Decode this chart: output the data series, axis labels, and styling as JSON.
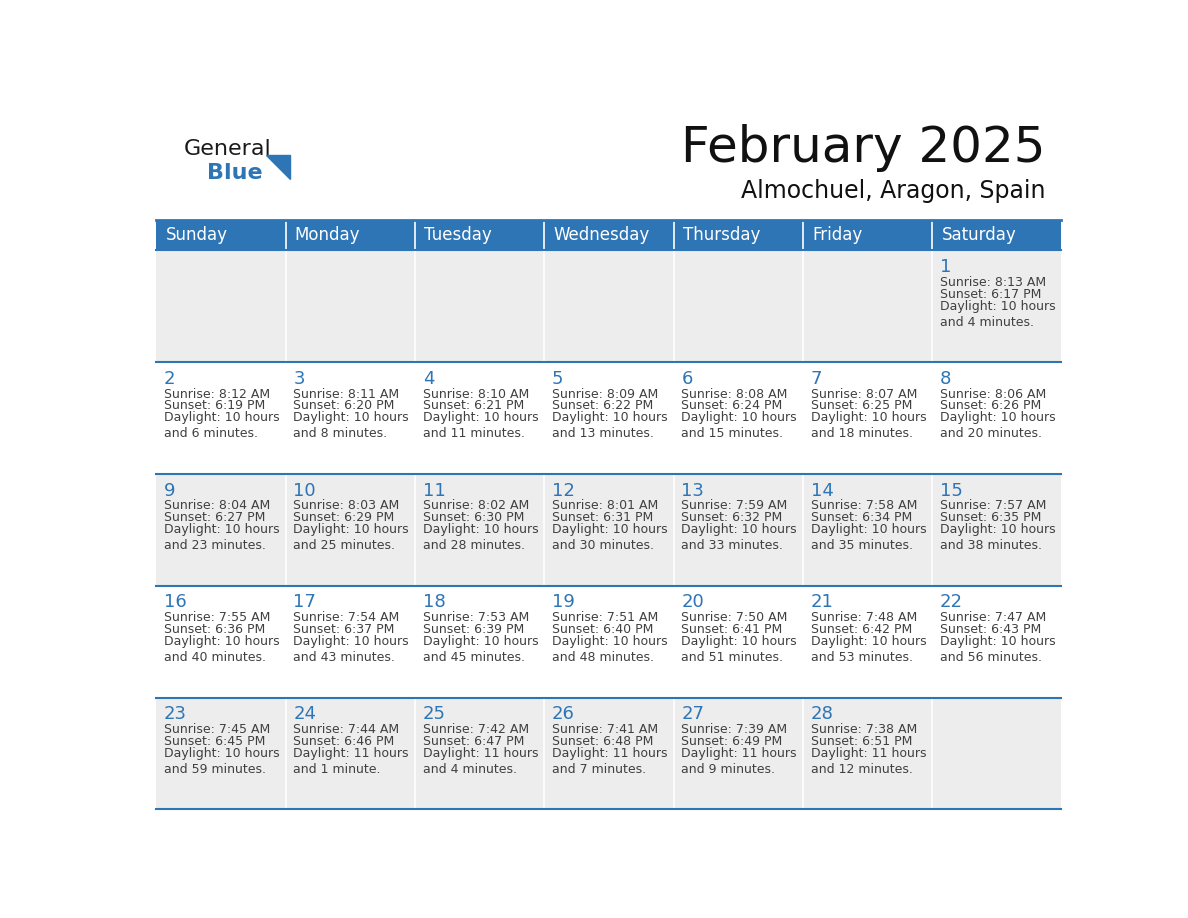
{
  "title": "February 2025",
  "subtitle": "Almochuel, Aragon, Spain",
  "header_bg": "#2E75B6",
  "header_text": "#FFFFFF",
  "cell_bg_gray": "#EDEDED",
  "cell_bg_white": "#FFFFFF",
  "day_number_color": "#2E75B6",
  "text_color": "#404040",
  "border_color": "#2E75B6",
  "days_of_week": [
    "Sunday",
    "Monday",
    "Tuesday",
    "Wednesday",
    "Thursday",
    "Friday",
    "Saturday"
  ],
  "calendar_data": [
    [
      null,
      null,
      null,
      null,
      null,
      null,
      {
        "day": 1,
        "sunrise": "8:13 AM",
        "sunset": "6:17 PM",
        "daylight": "10 hours\nand 4 minutes."
      }
    ],
    [
      {
        "day": 2,
        "sunrise": "8:12 AM",
        "sunset": "6:19 PM",
        "daylight": "10 hours\nand 6 minutes."
      },
      {
        "day": 3,
        "sunrise": "8:11 AM",
        "sunset": "6:20 PM",
        "daylight": "10 hours\nand 8 minutes."
      },
      {
        "day": 4,
        "sunrise": "8:10 AM",
        "sunset": "6:21 PM",
        "daylight": "10 hours\nand 11 minutes."
      },
      {
        "day": 5,
        "sunrise": "8:09 AM",
        "sunset": "6:22 PM",
        "daylight": "10 hours\nand 13 minutes."
      },
      {
        "day": 6,
        "sunrise": "8:08 AM",
        "sunset": "6:24 PM",
        "daylight": "10 hours\nand 15 minutes."
      },
      {
        "day": 7,
        "sunrise": "8:07 AM",
        "sunset": "6:25 PM",
        "daylight": "10 hours\nand 18 minutes."
      },
      {
        "day": 8,
        "sunrise": "8:06 AM",
        "sunset": "6:26 PM",
        "daylight": "10 hours\nand 20 minutes."
      }
    ],
    [
      {
        "day": 9,
        "sunrise": "8:04 AM",
        "sunset": "6:27 PM",
        "daylight": "10 hours\nand 23 minutes."
      },
      {
        "day": 10,
        "sunrise": "8:03 AM",
        "sunset": "6:29 PM",
        "daylight": "10 hours\nand 25 minutes."
      },
      {
        "day": 11,
        "sunrise": "8:02 AM",
        "sunset": "6:30 PM",
        "daylight": "10 hours\nand 28 minutes."
      },
      {
        "day": 12,
        "sunrise": "8:01 AM",
        "sunset": "6:31 PM",
        "daylight": "10 hours\nand 30 minutes."
      },
      {
        "day": 13,
        "sunrise": "7:59 AM",
        "sunset": "6:32 PM",
        "daylight": "10 hours\nand 33 minutes."
      },
      {
        "day": 14,
        "sunrise": "7:58 AM",
        "sunset": "6:34 PM",
        "daylight": "10 hours\nand 35 minutes."
      },
      {
        "day": 15,
        "sunrise": "7:57 AM",
        "sunset": "6:35 PM",
        "daylight": "10 hours\nand 38 minutes."
      }
    ],
    [
      {
        "day": 16,
        "sunrise": "7:55 AM",
        "sunset": "6:36 PM",
        "daylight": "10 hours\nand 40 minutes."
      },
      {
        "day": 17,
        "sunrise": "7:54 AM",
        "sunset": "6:37 PM",
        "daylight": "10 hours\nand 43 minutes."
      },
      {
        "day": 18,
        "sunrise": "7:53 AM",
        "sunset": "6:39 PM",
        "daylight": "10 hours\nand 45 minutes."
      },
      {
        "day": 19,
        "sunrise": "7:51 AM",
        "sunset": "6:40 PM",
        "daylight": "10 hours\nand 48 minutes."
      },
      {
        "day": 20,
        "sunrise": "7:50 AM",
        "sunset": "6:41 PM",
        "daylight": "10 hours\nand 51 minutes."
      },
      {
        "day": 21,
        "sunrise": "7:48 AM",
        "sunset": "6:42 PM",
        "daylight": "10 hours\nand 53 minutes."
      },
      {
        "day": 22,
        "sunrise": "7:47 AM",
        "sunset": "6:43 PM",
        "daylight": "10 hours\nand 56 minutes."
      }
    ],
    [
      {
        "day": 23,
        "sunrise": "7:45 AM",
        "sunset": "6:45 PM",
        "daylight": "10 hours\nand 59 minutes."
      },
      {
        "day": 24,
        "sunrise": "7:44 AM",
        "sunset": "6:46 PM",
        "daylight": "11 hours\nand 1 minute."
      },
      {
        "day": 25,
        "sunrise": "7:42 AM",
        "sunset": "6:47 PM",
        "daylight": "11 hours\nand 4 minutes."
      },
      {
        "day": 26,
        "sunrise": "7:41 AM",
        "sunset": "6:48 PM",
        "daylight": "11 hours\nand 7 minutes."
      },
      {
        "day": 27,
        "sunrise": "7:39 AM",
        "sunset": "6:49 PM",
        "daylight": "11 hours\nand 9 minutes."
      },
      {
        "day": 28,
        "sunrise": "7:38 AM",
        "sunset": "6:51 PM",
        "daylight": "11 hours\nand 12 minutes."
      },
      null
    ]
  ],
  "logo_general_color": "#1a1a1a",
  "logo_blue_color": "#2E75B6"
}
